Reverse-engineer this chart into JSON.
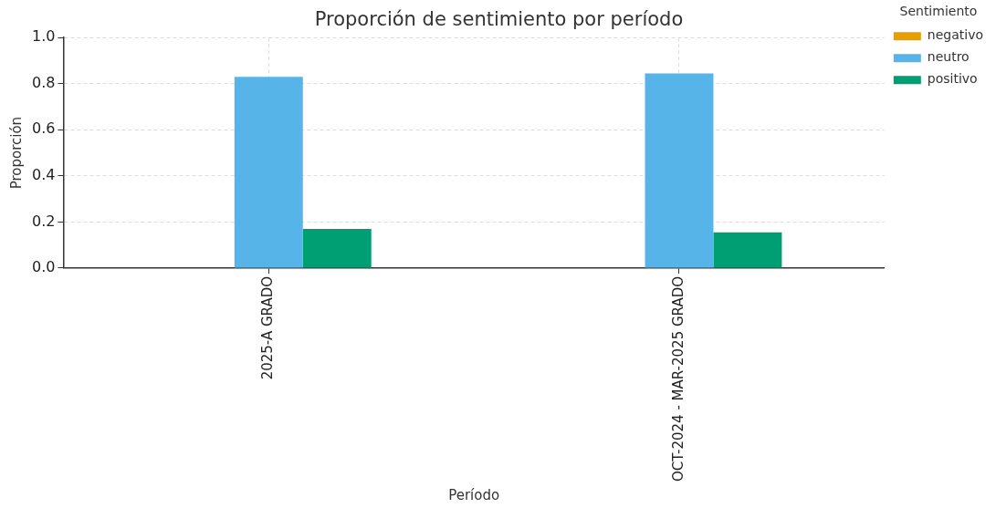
{
  "chart_data": {
    "type": "bar",
    "title": "Proporción de sentimiento por período",
    "xlabel": "Período",
    "ylabel": "Proporción",
    "legend_title": "Sentimiento",
    "categories": [
      "2025-A GRADO",
      "OCT-2024 - MAR-2025 GRADO"
    ],
    "series": [
      {
        "name": "negativo",
        "color": "#e69f00",
        "values": [
          0,
          0
        ]
      },
      {
        "name": "neutro",
        "color": "#56b4e9",
        "values": [
          0.83,
          0.845
        ]
      },
      {
        "name": "positivo",
        "color": "#009e73",
        "values": [
          0.17,
          0.155
        ]
      }
    ],
    "ylim": [
      0,
      1
    ],
    "yticks": [
      {
        "value": 0,
        "label": "0.0"
      },
      {
        "value": 0.2,
        "label": "0.2"
      },
      {
        "value": 0.4,
        "label": "0.4"
      },
      {
        "value": 0.6,
        "label": "0.6"
      },
      {
        "value": 0.8,
        "label": "0.8"
      },
      {
        "value": 1,
        "label": "1.0"
      }
    ],
    "grid": true,
    "legend": "top right"
  }
}
